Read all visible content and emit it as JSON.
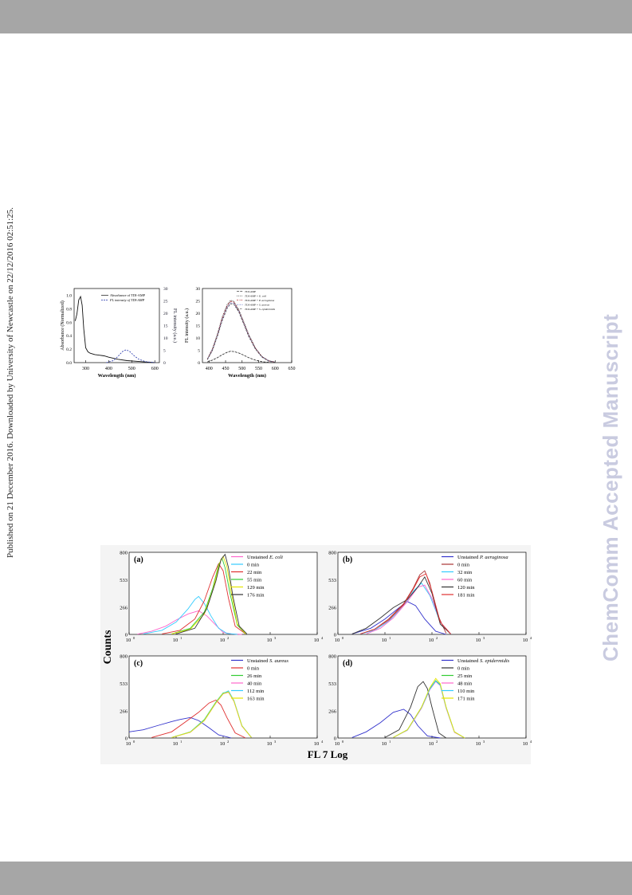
{
  "side_note": "Published on 21 December 2016. Downloaded by University of Newcastle on 22/12/2016 02:51:25.",
  "watermark": "ChemComm Accepted Manuscript",
  "figure1": {
    "left": {
      "ylabel": "Absorbance (Normalized)",
      "y2label": "FL intensity (a.u.)",
      "xlabel": "Wavelength (nm)",
      "legend": [
        "Absorbance of TDI-AMP",
        "FL intensity of TDI-AMP"
      ],
      "xticks": [
        "300",
        "400",
        "500",
        "600"
      ],
      "yticks": [
        "0.0",
        "0.2",
        "0.4",
        "0.6",
        "0.8",
        "1.0"
      ],
      "y2ticks": [
        "0",
        "5",
        "10",
        "15",
        "20",
        "25",
        "30"
      ]
    },
    "right": {
      "ylabel": "FL intensity (a.u.)",
      "xlabel": "Wavelength (nm)",
      "legend": [
        "TDI-AMP",
        "TDI-AMP + E. coli",
        "TDI-AMP + P. aeruginosa",
        "TDI-AMP + S. aureus",
        "TDI-AMP + S. epidermidis"
      ],
      "xticks": [
        "400",
        "450",
        "500",
        "550",
        "600",
        "650"
      ],
      "yticks": [
        "0",
        "5",
        "10",
        "15",
        "20",
        "25",
        "30"
      ]
    }
  },
  "chart_data": [
    {
      "type": "line",
      "panel": "fig1-left",
      "xlabel": "Wavelength (nm)",
      "ylabel": "Absorbance (Normalized)",
      "y2label": "FL intensity (a.u.)",
      "xlim": [
        250,
        620
      ],
      "ylim": [
        0,
        1.1
      ],
      "y2lim": [
        0,
        30
      ],
      "series": [
        {
          "name": "Absorbance of TDI-AMP",
          "x": [
            255,
            262,
            270,
            278,
            285,
            292,
            300,
            310,
            320,
            340,
            360,
            380,
            400,
            440,
            480,
            520,
            560,
            600
          ],
          "values": [
            0.62,
            0.72,
            0.93,
            0.98,
            0.85,
            0.5,
            0.22,
            0.16,
            0.14,
            0.12,
            0.11,
            0.1,
            0.08,
            0.05,
            0.03,
            0.02,
            0.01,
            0.0
          ]
        },
        {
          "name": "FL intensity of TDI-AMP",
          "axis": "y2",
          "x": [
            390,
            420,
            440,
            460,
            475,
            490,
            510,
            530,
            560,
            600
          ],
          "values": [
            0,
            0.8,
            2.5,
            4.5,
            5.2,
            4.6,
            2.8,
            1.4,
            0.4,
            0
          ]
        }
      ]
    },
    {
      "type": "line",
      "panel": "fig1-right",
      "xlabel": "Wavelength (nm)",
      "ylabel": "FL intensity (a.u.)",
      "xlim": [
        380,
        650
      ],
      "ylim": [
        0,
        30
      ],
      "x": [
        395,
        410,
        425,
        440,
        455,
        465,
        475,
        490,
        505,
        520,
        540,
        560,
        580,
        600
      ],
      "series": [
        {
          "name": "TDI-AMP",
          "values": [
            0.3,
            1.0,
            2.0,
            3.2,
            4.2,
            4.6,
            4.5,
            3.9,
            3.0,
            2.0,
            1.0,
            0.4,
            0.1,
            0
          ]
        },
        {
          "name": "TDI-AMP + E. coli",
          "values": [
            1.5,
            5.5,
            11.5,
            18.5,
            23.5,
            25.2,
            24.8,
            21.5,
            16.5,
            11.5,
            6.0,
            2.5,
            0.8,
            0.2
          ]
        },
        {
          "name": "TDI-AMP + P. aeruginosa",
          "values": [
            1.4,
            5.2,
            11.0,
            18.0,
            23.0,
            24.8,
            24.5,
            21.0,
            16.0,
            11.0,
            5.8,
            2.4,
            0.7,
            0.2
          ]
        },
        {
          "name": "TDI-AMP + S. aureus",
          "values": [
            1.3,
            5.0,
            10.8,
            17.5,
            22.5,
            24.2,
            24.0,
            20.8,
            15.8,
            10.8,
            5.6,
            2.3,
            0.7,
            0.2
          ]
        },
        {
          "name": "TDI-AMP + S. epidermidis",
          "values": [
            1.2,
            4.8,
            10.5,
            17.0,
            22.0,
            23.8,
            23.6,
            20.5,
            15.5,
            10.5,
            5.5,
            2.2,
            0.6,
            0.2
          ]
        }
      ]
    },
    {
      "type": "line",
      "panel": "(a)",
      "x_scale": "log",
      "xlim": [
        1,
        10000
      ],
      "ylim": [
        0,
        800
      ],
      "yticks": [
        "0",
        "266",
        "533",
        "800"
      ],
      "series": [
        {
          "name": "Unstained E. coli",
          "color": "#ff66cc",
          "x": [
            1.5,
            3,
            6,
            10,
            18,
            30,
            45,
            70,
            100,
            150,
            250
          ],
          "values": [
            2,
            30,
            80,
            140,
            200,
            230,
            180,
            90,
            20,
            5,
            0
          ]
        },
        {
          "name": "0 min",
          "color": "#33ccff",
          "x": [
            2,
            5,
            10,
            18,
            25,
            30,
            40,
            55,
            80,
            120,
            200
          ],
          "values": [
            5,
            40,
            120,
            250,
            340,
            370,
            300,
            180,
            60,
            10,
            0
          ]
        },
        {
          "name": "22 min",
          "color": "#e03030",
          "x": [
            5,
            12,
            25,
            40,
            60,
            80,
            100,
            130,
            180,
            300
          ],
          "values": [
            5,
            40,
            150,
            330,
            560,
            690,
            620,
            350,
            80,
            5
          ]
        },
        {
          "name": "55 min",
          "color": "#33cc33",
          "x": [
            8,
            20,
            40,
            60,
            80,
            95,
            110,
            140,
            200,
            300
          ],
          "values": [
            5,
            60,
            220,
            450,
            680,
            740,
            650,
            400,
            90,
            5
          ]
        },
        {
          "name": "129 min",
          "color": "#e6e600",
          "x": [
            8,
            20,
            40,
            60,
            85,
            100,
            120,
            150,
            200,
            300
          ],
          "values": [
            5,
            50,
            200,
            430,
            700,
            760,
            660,
            400,
            100,
            5
          ]
        },
        {
          "name": "176 min",
          "color": "#333333",
          "x": [
            10,
            25,
            45,
            70,
            90,
            110,
            130,
            160,
            220,
            320
          ],
          "values": [
            5,
            60,
            250,
            520,
            730,
            780,
            650,
            380,
            80,
            5
          ]
        }
      ]
    },
    {
      "type": "line",
      "panel": "(b)",
      "x_scale": "log",
      "xlim": [
        1,
        10000
      ],
      "ylim": [
        0,
        800
      ],
      "yticks": [
        "0",
        "266",
        "533",
        "800"
      ],
      "series": [
        {
          "name": "Unstained P. aeruginosa",
          "color": "#3333cc",
          "x": [
            2,
            5,
            10,
            20,
            30,
            45,
            70,
            120,
            200
          ],
          "values": [
            5,
            60,
            150,
            260,
            320,
            280,
            150,
            30,
            0
          ]
        },
        {
          "name": "0 min",
          "color": "#aa3333",
          "x": [
            3,
            6,
            12,
            25,
            40,
            55,
            70,
            90,
            130,
            200
          ],
          "values": [
            5,
            50,
            150,
            300,
            450,
            580,
            620,
            500,
            200,
            10
          ]
        },
        {
          "name": "32 min",
          "color": "#33ccff",
          "x": [
            3,
            6,
            12,
            25,
            40,
            60,
            90,
            150,
            250
          ],
          "values": [
            5,
            40,
            130,
            280,
            420,
            500,
            380,
            120,
            5
          ]
        },
        {
          "name": "60 min",
          "color": "#ff66cc",
          "x": [
            4,
            8,
            15,
            30,
            50,
            70,
            100,
            150,
            250
          ],
          "values": [
            5,
            60,
            160,
            320,
            460,
            480,
            350,
            120,
            5
          ]
        },
        {
          "name": "120 min",
          "color": "#333333",
          "x": [
            2,
            4,
            8,
            15,
            30,
            50,
            70,
            100,
            150,
            250
          ],
          "values": [
            5,
            60,
            160,
            260,
            340,
            460,
            560,
            400,
            100,
            5
          ]
        },
        {
          "name": "181 min",
          "color": "#e03030",
          "x": [
            3,
            6,
            12,
            25,
            40,
            55,
            75,
            100,
            150,
            250
          ],
          "values": [
            5,
            50,
            140,
            290,
            440,
            560,
            590,
            420,
            120,
            5
          ]
        }
      ]
    },
    {
      "type": "line",
      "panel": "(c)",
      "x_scale": "log",
      "xlim": [
        1,
        10000
      ],
      "ylim": [
        0,
        800
      ],
      "yticks": [
        "0",
        "266",
        "533",
        "800"
      ],
      "series": [
        {
          "name": "Unstained S. aureus",
          "color": "#3333cc",
          "x": [
            1,
            2,
            4,
            8,
            12,
            20,
            30,
            50,
            80,
            150
          ],
          "values": [
            60,
            80,
            120,
            160,
            180,
            200,
            170,
            100,
            30,
            0
          ]
        },
        {
          "name": "0 min",
          "color": "#e03030",
          "x": [
            3,
            8,
            15,
            30,
            50,
            70,
            90,
            120,
            180,
            300
          ],
          "values": [
            5,
            60,
            150,
            250,
            340,
            370,
            320,
            200,
            50,
            0
          ]
        },
        {
          "name": "26 min",
          "color": "#33cc33",
          "x": [
            8,
            20,
            40,
            70,
            100,
            130,
            170,
            250,
            400
          ],
          "values": [
            5,
            60,
            180,
            350,
            440,
            450,
            360,
            120,
            5
          ]
        },
        {
          "name": "40 min",
          "color": "#ff66cc",
          "x": [
            8,
            20,
            40,
            70,
            100,
            130,
            170,
            250,
            400
          ],
          "values": [
            5,
            55,
            170,
            340,
            430,
            445,
            355,
            115,
            5
          ]
        },
        {
          "name": "112 min",
          "color": "#33ccff",
          "x": [
            8,
            20,
            40,
            70,
            100,
            130,
            170,
            250,
            400
          ],
          "values": [
            5,
            58,
            175,
            345,
            435,
            460,
            365,
            120,
            5
          ]
        },
        {
          "name": "163 min",
          "color": "#e6e600",
          "x": [
            8,
            20,
            40,
            70,
            100,
            130,
            170,
            250,
            400
          ],
          "values": [
            5,
            57,
            172,
            342,
            432,
            448,
            358,
            118,
            5
          ]
        }
      ]
    },
    {
      "type": "line",
      "panel": "(d)",
      "x_scale": "log",
      "xlim": [
        1,
        10000
      ],
      "ylim": [
        0,
        800
      ],
      "yticks": [
        "0",
        "266",
        "533",
        "800"
      ],
      "series": [
        {
          "name": "Unstained S. epidermidis",
          "color": "#3333cc",
          "x": [
            2,
            4,
            8,
            15,
            25,
            35,
            50,
            80,
            150
          ],
          "values": [
            5,
            60,
            150,
            250,
            280,
            230,
            120,
            20,
            0
          ]
        },
        {
          "name": "0 min",
          "color": "#333333",
          "x": [
            10,
            20,
            35,
            50,
            65,
            80,
            100,
            140,
            200
          ],
          "values": [
            5,
            80,
            300,
            500,
            550,
            480,
            300,
            50,
            0
          ]
        },
        {
          "name": "25 min",
          "color": "#33cc33",
          "x": [
            15,
            30,
            60,
            90,
            120,
            150,
            200,
            300,
            500
          ],
          "values": [
            5,
            80,
            300,
            480,
            560,
            520,
            300,
            60,
            0
          ]
        },
        {
          "name": "48 min",
          "color": "#ff66cc",
          "x": [
            15,
            30,
            60,
            90,
            120,
            150,
            200,
            300,
            500
          ],
          "values": [
            5,
            75,
            290,
            470,
            550,
            510,
            290,
            55,
            0
          ]
        },
        {
          "name": "110 min",
          "color": "#33ccff",
          "x": [
            15,
            30,
            60,
            90,
            120,
            150,
            200,
            300,
            500
          ],
          "values": [
            5,
            78,
            295,
            475,
            555,
            515,
            295,
            58,
            0
          ]
        },
        {
          "name": "171 min",
          "color": "#e6e600",
          "x": [
            15,
            30,
            60,
            90,
            120,
            150,
            200,
            300,
            500
          ],
          "values": [
            5,
            80,
            300,
            490,
            580,
            530,
            300,
            60,
            0
          ]
        }
      ]
    }
  ],
  "figure2": {
    "ylabel": "Counts",
    "xlabel": "FL 7 Log",
    "xtick_labels": [
      "10",
      "10",
      "10",
      "10",
      "10"
    ],
    "xtick_exps": [
      "0",
      "1",
      "2",
      "3",
      "4"
    ],
    "panels": [
      {
        "letter": "(a)",
        "legend": [
          {
            "prefix": "Unstained ",
            "species": "E. coli"
          },
          {
            "prefix": "0 min",
            "species": ""
          },
          {
            "prefix": "22 min",
            "species": ""
          },
          {
            "prefix": "55 min",
            "species": ""
          },
          {
            "prefix": "129 min",
            "species": ""
          },
          {
            "prefix": "176 min",
            "species": ""
          }
        ]
      },
      {
        "letter": "(b)",
        "legend": [
          {
            "prefix": "Unstained ",
            "species": "P. aeruginosa"
          },
          {
            "prefix": "0 min",
            "species": ""
          },
          {
            "prefix": "32 min",
            "species": ""
          },
          {
            "prefix": "60 min",
            "species": ""
          },
          {
            "prefix": "120 min",
            "species": ""
          },
          {
            "prefix": "181 min",
            "species": ""
          }
        ]
      },
      {
        "letter": "(c)",
        "legend": [
          {
            "prefix": "Unstained ",
            "species": "S. aureus"
          },
          {
            "prefix": "0 min",
            "species": ""
          },
          {
            "prefix": "26 min",
            "species": ""
          },
          {
            "prefix": "40 min",
            "species": ""
          },
          {
            "prefix": "112 min",
            "species": ""
          },
          {
            "prefix": "163 min",
            "species": ""
          }
        ]
      },
      {
        "letter": "(d)",
        "legend": [
          {
            "prefix": "Unstained ",
            "species": "S. epidermidis"
          },
          {
            "prefix": "0 min",
            "species": ""
          },
          {
            "prefix": "25 min",
            "species": ""
          },
          {
            "prefix": "48 min",
            "species": ""
          },
          {
            "prefix": "110 min",
            "species": ""
          },
          {
            "prefix": "171 min",
            "species": ""
          }
        ]
      }
    ]
  }
}
